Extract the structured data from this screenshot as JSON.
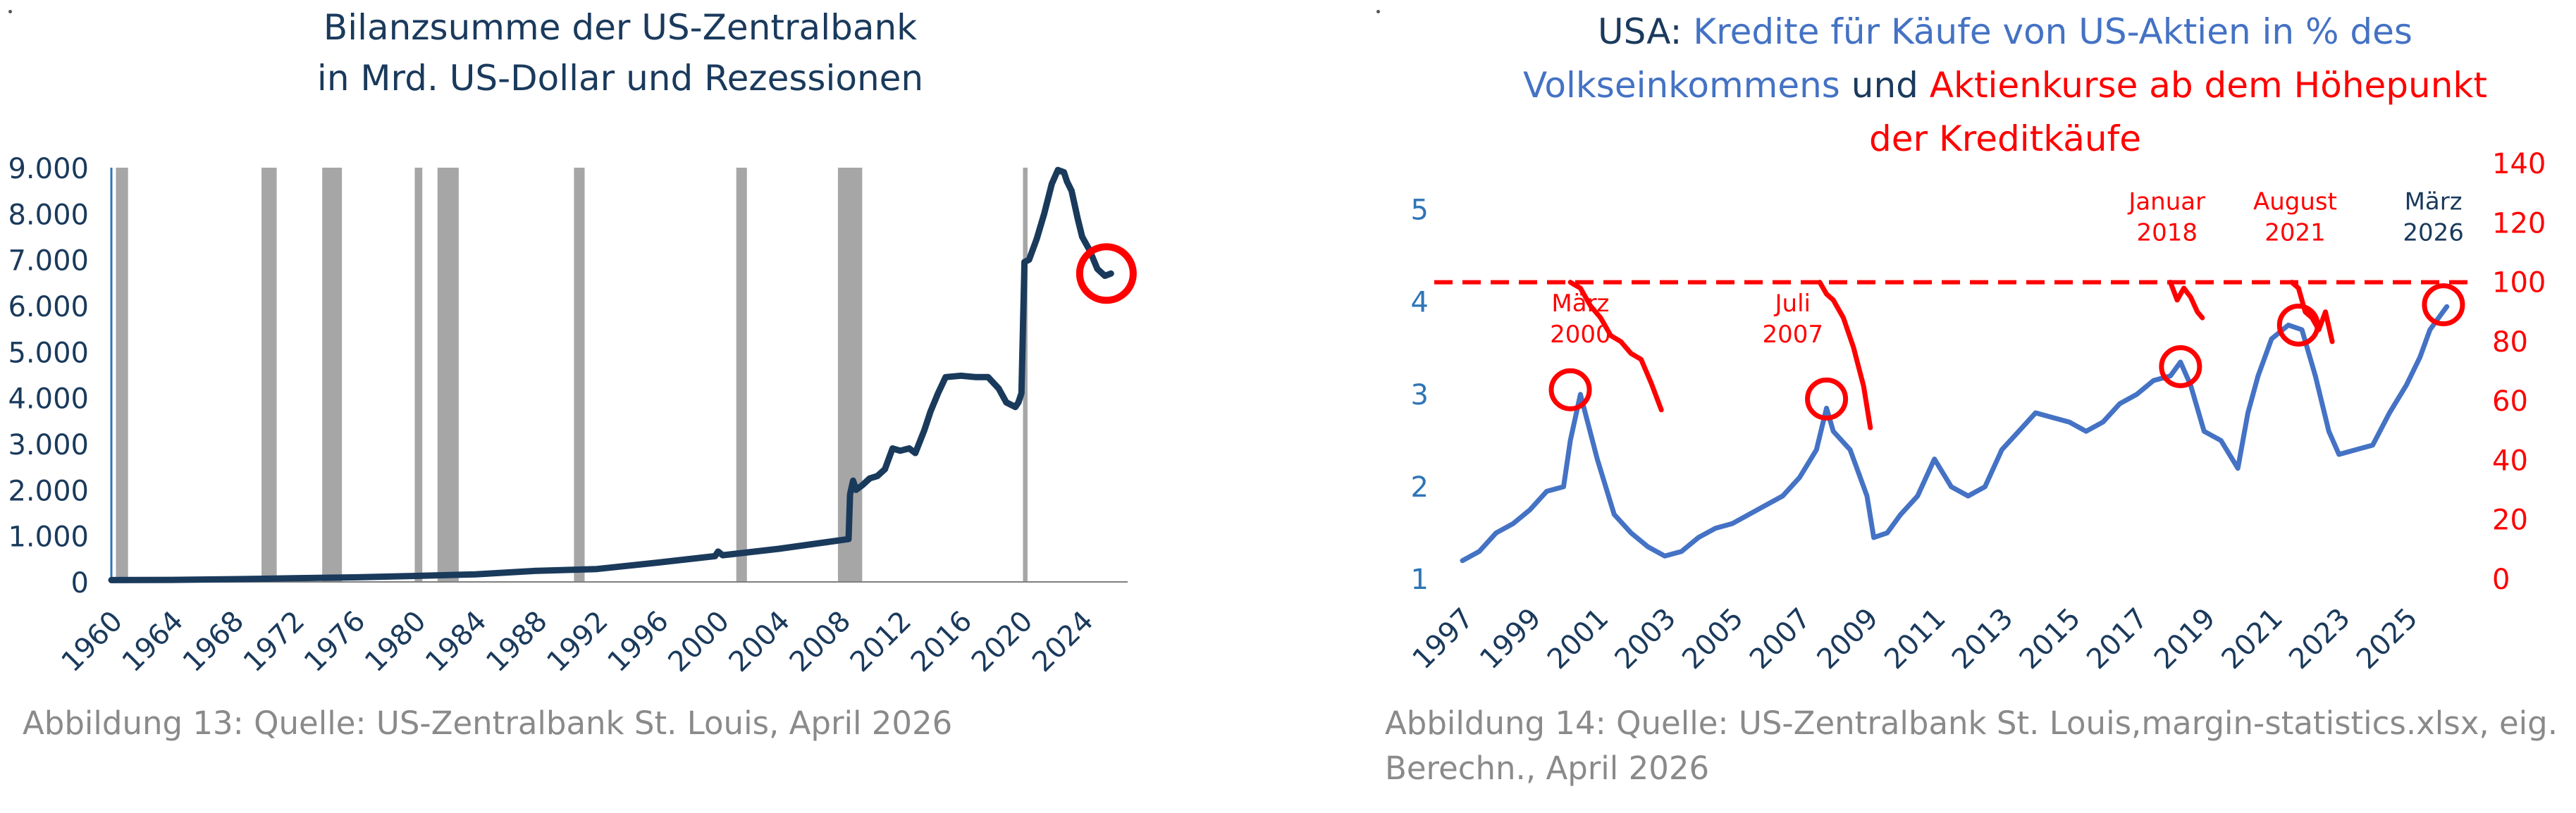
{
  "colors": {
    "navy": "#1a3a5c",
    "blue": "#4472c4",
    "red": "#ff0000",
    "recession": "#a6a6a6",
    "axis": "#2e75b6",
    "caption": "#8a8a8a"
  },
  "chart_data": [
    {
      "type": "line",
      "title_lines": [
        "Bilanzsumme der US-Zentralbank",
        "in Mrd. US-Dollar und Rezessionen"
      ],
      "xlabel": "",
      "ylabel": "",
      "xlim": [
        1960,
        2027
      ],
      "ylim": [
        0,
        9000
      ],
      "y_ticks": [
        0,
        1000,
        2000,
        3000,
        4000,
        5000,
        6000,
        7000,
        8000,
        9000
      ],
      "y_tick_labels": [
        "0",
        "1.000",
        "2.000",
        "3.000",
        "4.000",
        "5.000",
        "6.000",
        "7.000",
        "8.000",
        "9.000"
      ],
      "x_ticks": [
        1960,
        1964,
        1968,
        1972,
        1976,
        1980,
        1984,
        1988,
        1992,
        1996,
        2000,
        2004,
        2008,
        2012,
        2016,
        2020,
        2024
      ],
      "x_tick_labels": [
        "1960",
        "1964",
        "1968",
        "1972",
        "1976",
        "1980",
        "1984",
        "1988",
        "1992",
        "1996",
        "2000",
        "2004",
        "2008",
        "2012",
        "2016",
        "2020",
        "2024"
      ],
      "recessions": [
        [
          1960.3,
          1961.1
        ],
        [
          1969.9,
          1970.9
        ],
        [
          1973.9,
          1975.2
        ],
        [
          1980.0,
          1980.5
        ],
        [
          1981.5,
          1982.9
        ],
        [
          1990.5,
          1991.2
        ],
        [
          2001.2,
          2001.9
        ],
        [
          2007.9,
          2009.5
        ],
        [
          2020.1,
          2020.4
        ]
      ],
      "series": [
        {
          "name": "Bilanzsumme",
          "x": [
            1960,
            1964,
            1968,
            1972,
            1976,
            1980,
            1984,
            1988,
            1992,
            1996,
            1999.8,
            2000.0,
            2000.3,
            2004,
            2007.5,
            2008.6,
            2008.7,
            2008.9,
            2009.1,
            2009.5,
            2010.0,
            2010.5,
            2011.0,
            2011.5,
            2012.0,
            2012.6,
            2013.0,
            2013.6,
            2014.0,
            2014.5,
            2015.0,
            2016.0,
            2017.0,
            2017.8,
            2018.5,
            2019.0,
            2019.6,
            2019.8,
            2020.0,
            2020.2,
            2020.5,
            2021.0,
            2021.5,
            2022.0,
            2022.4,
            2022.8,
            2023.0,
            2023.3,
            2023.7,
            2024.0,
            2024.5,
            2025.0,
            2025.5,
            2025.9
          ],
          "values": [
            40,
            45,
            60,
            80,
            100,
            130,
            165,
            240,
            280,
            420,
            560,
            660,
            580,
            720,
            880,
            930,
            1900,
            2200,
            2000,
            2100,
            2250,
            2300,
            2450,
            2900,
            2850,
            2900,
            2800,
            3300,
            3700,
            4100,
            4450,
            4480,
            4450,
            4450,
            4200,
            3900,
            3800,
            3900,
            4100,
            6950,
            7000,
            7450,
            8000,
            8650,
            8950,
            8900,
            8700,
            8500,
            7900,
            7500,
            7200,
            6800,
            6650,
            6700
          ]
        }
      ],
      "annotations": [
        {
          "type": "circle",
          "x": 2025.6,
          "y": 6700
        }
      ]
    },
    {
      "type": "line",
      "title_lines": [
        [
          {
            "text": "USA: ",
            "color": "#1a3a5c"
          },
          {
            "text": "Kredite für Käufe von US-Aktien in % des",
            "color": "#4472c4"
          }
        ],
        [
          {
            "text": "Volkseinkommens",
            "color": "#4472c4"
          },
          {
            "text": " und ",
            "color": "#1a3a5c"
          },
          {
            "text": "Aktienkurse ab dem Höhepunkt",
            "color": "#ff0000"
          }
        ],
        [
          {
            "text": "der Kreditkäufe",
            "color": "#ff0000"
          }
        ]
      ],
      "xlim": [
        1997,
        2027
      ],
      "ylim_left": [
        1,
        5.5
      ],
      "ylim_right": [
        0,
        140
      ],
      "y_left_ticks": [
        1,
        2,
        3,
        4,
        5
      ],
      "y_left_tick_labels": [
        "1",
        "2",
        "3",
        "4",
        "5"
      ],
      "y_right_ticks": [
        0,
        20,
        40,
        60,
        80,
        100,
        120,
        140
      ],
      "y_right_tick_labels": [
        "0",
        "20",
        "40",
        "60",
        "80",
        "100",
        "120",
        "140"
      ],
      "x_ticks": [
        1997,
        1999,
        2001,
        2003,
        2005,
        2007,
        2009,
        2011,
        2013,
        2015,
        2017,
        2019,
        2021,
        2023,
        2025
      ],
      "x_tick_labels": [
        "1997",
        "1999",
        "2001",
        "2003",
        "2005",
        "2007",
        "2009",
        "2011",
        "2013",
        "2015",
        "2017",
        "2019",
        "2021",
        "2023",
        "2025"
      ],
      "reference_line": {
        "axis": "right",
        "value": 100,
        "style": "dashed"
      },
      "series": [
        {
          "name": "Kredite für Käufe von US-Aktien in % des Volkseinkommens",
          "axis": "left",
          "x": [
            1997.0,
            1997.5,
            1998.0,
            1998.5,
            1999.0,
            1999.5,
            2000.0,
            2000.2,
            2000.5,
            2001.0,
            2001.5,
            2002.0,
            2002.5,
            2003.0,
            2003.5,
            2004.0,
            2004.5,
            2005.0,
            2005.5,
            2006.0,
            2006.5,
            2007.0,
            2007.5,
            2007.8,
            2008.0,
            2008.5,
            2009.0,
            2009.2,
            2009.6,
            2010.0,
            2010.5,
            2011.0,
            2011.5,
            2012.0,
            2012.5,
            2013.0,
            2013.5,
            2014.0,
            2014.5,
            2015.0,
            2015.5,
            2016.0,
            2016.5,
            2017.0,
            2017.5,
            2018.0,
            2018.3,
            2018.6,
            2019.0,
            2019.5,
            2020.0,
            2020.3,
            2020.6,
            2021.0,
            2021.5,
            2021.9,
            2022.3,
            2022.7,
            2023.0,
            2023.5,
            2024.0,
            2024.5,
            2025.0,
            2025.4,
            2025.7,
            2026.2
          ],
          "values": [
            1.2,
            1.3,
            1.5,
            1.6,
            1.75,
            1.95,
            2.0,
            2.5,
            3.0,
            2.3,
            1.7,
            1.5,
            1.35,
            1.25,
            1.3,
            1.45,
            1.55,
            1.6,
            1.7,
            1.8,
            1.9,
            2.1,
            2.4,
            2.85,
            2.6,
            2.4,
            1.9,
            1.45,
            1.5,
            1.7,
            1.9,
            2.3,
            2.0,
            1.9,
            2.0,
            2.4,
            2.6,
            2.8,
            2.75,
            2.7,
            2.6,
            2.7,
            2.9,
            3.0,
            3.15,
            3.2,
            3.35,
            3.1,
            2.6,
            2.5,
            2.2,
            2.8,
            3.2,
            3.6,
            3.75,
            3.7,
            3.2,
            2.6,
            2.35,
            2.4,
            2.45,
            2.8,
            3.1,
            3.4,
            3.7,
            3.95
          ]
        },
        {
          "name": "Aktienkurse ab dem Höhepunkt März 2000",
          "axis": "right",
          "x": [
            2000.2,
            2000.5,
            2000.8,
            2001.1,
            2001.4,
            2001.7,
            2002.0,
            2002.3,
            2002.6,
            2002.9
          ],
          "values": [
            100,
            98,
            92,
            88,
            82,
            80,
            76,
            74,
            66,
            57
          ]
        },
        {
          "name": "Aktienkurse ab dem Höhepunkt Juli 2007",
          "axis": "right",
          "x": [
            2007.6,
            2007.8,
            2008.0,
            2008.3,
            2008.6,
            2008.9,
            2009.1
          ],
          "values": [
            100,
            96,
            94,
            88,
            78,
            65,
            51
          ]
        },
        {
          "name": "Aktienkurse ab dem Höhepunkt Januar 2018",
          "axis": "right",
          "x": [
            2018.0,
            2018.2,
            2018.4,
            2018.6,
            2018.8,
            2018.95
          ],
          "values": [
            100,
            94,
            98,
            95,
            90,
            88
          ]
        },
        {
          "name": "Aktienkurse ab dem Höhepunkt August 2021",
          "axis": "right",
          "x": [
            2021.6,
            2021.8,
            2022.0,
            2022.2,
            2022.4,
            2022.6,
            2022.8
          ],
          "values": [
            100,
            98,
            90,
            88,
            84,
            90,
            80
          ]
        }
      ],
      "annotations": [
        {
          "type": "label",
          "lines": [
            "März",
            "2000"
          ],
          "x": 2000.5,
          "y_left": 3.9,
          "color": "#ff0000"
        },
        {
          "type": "label",
          "lines": [
            "Juli",
            "2007"
          ],
          "x": 2006.8,
          "y_left": 3.9,
          "color": "#ff0000"
        },
        {
          "type": "label",
          "lines": [
            "Januar",
            "2018"
          ],
          "x": 2017.9,
          "y_left": 5.0,
          "color": "#ff0000"
        },
        {
          "type": "label",
          "lines": [
            "August",
            "2021"
          ],
          "x": 2021.7,
          "y_left": 5.0,
          "color": "#ff0000"
        },
        {
          "type": "label",
          "lines": [
            "März",
            "2026"
          ],
          "x": 2025.8,
          "y_left": 5.0,
          "color": "#1a3a5c"
        },
        {
          "type": "circle",
          "x": 2000.2,
          "y_left": 3.05
        },
        {
          "type": "circle",
          "x": 2007.8,
          "y_left": 2.95
        },
        {
          "type": "circle",
          "x": 2018.3,
          "y_left": 3.3
        },
        {
          "type": "circle",
          "x": 2021.8,
          "y_left": 3.75
        },
        {
          "type": "circle",
          "x": 2026.1,
          "y_left": 3.97
        }
      ]
    }
  ],
  "captions": {
    "left": "Abbildung 13: Quelle: US-Zentralbank St. Louis, April 2026",
    "right": "Abbildung 14: Quelle: US-Zentralbank St. Louis,margin-statistics.xlsx, eig. Berechn., April 2026"
  }
}
